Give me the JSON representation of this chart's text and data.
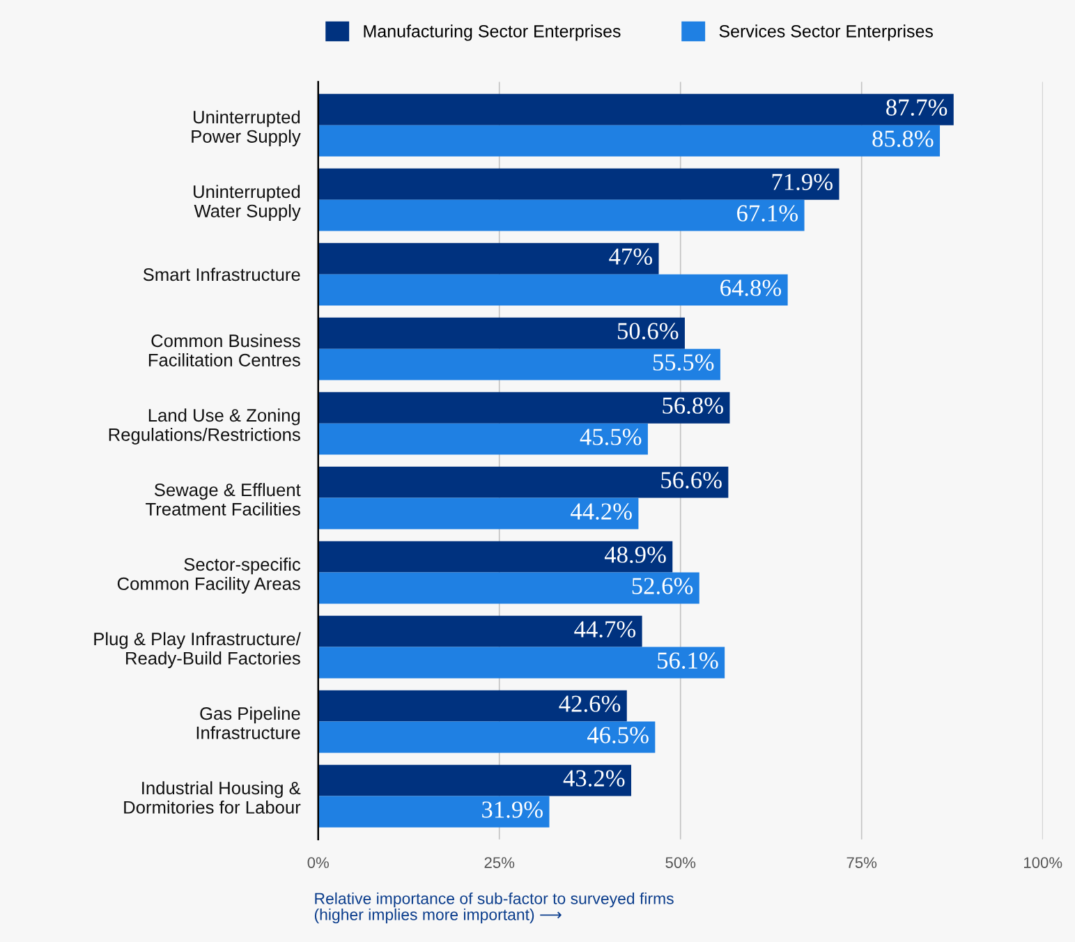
{
  "chart_data": {
    "type": "bar",
    "orientation": "horizontal",
    "xlabel": "Relative importance of sub-factor to surveyed firms\n(higher implies more important) ⟶",
    "categories": [
      "Uninterrupted\nPower Supply",
      "Uninterrupted\nWater Supply",
      "Smart Infrastructure",
      "Common Business\nFacilitation Centres",
      "Land Use & Zoning\nRegulations/Restrictions",
      "Sewage & Effluent\nTreatment Facilities",
      "Sector-specific\nCommon Facility Areas",
      "Plug & Play Infrastructure/\nReady-Build Factories",
      "Gas Pipeline\nInfrastructure",
      "Industrial Housing &\nDormitories for Labour"
    ],
    "series": [
      {
        "name": "Manufacturing Sector Enterprises",
        "color": "#00327f",
        "values": [
          87.7,
          71.9,
          47,
          50.6,
          56.8,
          56.6,
          48.9,
          44.7,
          42.6,
          43.2
        ],
        "value_labels": [
          "87.7%",
          "71.9%",
          "47%",
          "50.6%",
          "56.8%",
          "56.6%",
          "48.9%",
          "44.7%",
          "42.6%",
          "43.2%"
        ]
      },
      {
        "name": "Services Sector Enterprises",
        "color": "#1f80e3",
        "values": [
          85.8,
          67.1,
          64.8,
          55.5,
          45.5,
          44.2,
          52.6,
          56.1,
          46.5,
          31.9
        ],
        "value_labels": [
          "85.8%",
          "67.1%",
          "64.8%",
          "55.5%",
          "45.5%",
          "44.2%",
          "52.6%",
          "56.1%",
          "46.5%",
          "31.9%"
        ]
      }
    ],
    "xlim": [
      0,
      100
    ],
    "xticks": [
      {
        "value": 0,
        "label": "0%"
      },
      {
        "value": 25,
        "label": "25%"
      },
      {
        "value": 50,
        "label": "50%"
      },
      {
        "value": 75,
        "label": "75%"
      },
      {
        "value": 100,
        "label": "100%"
      }
    ],
    "grid": "x",
    "legend": "top"
  }
}
